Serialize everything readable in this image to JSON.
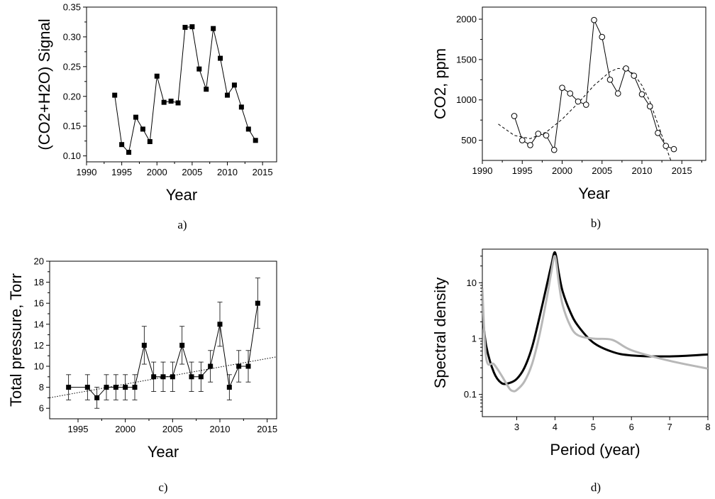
{
  "chart_data": [
    {
      "type": "line",
      "caption": "a)",
      "xlabel": "Year",
      "ylabel": "(CO2+H2O) Signal",
      "xlim": [
        1990,
        2017
      ],
      "ylim": [
        0.09,
        0.35
      ],
      "xticks": [
        1990,
        1995,
        2000,
        2005,
        2010,
        2015
      ],
      "yticks": [
        "0.10",
        "0.15",
        "0.20",
        "0.25",
        "0.30",
        "0.35"
      ],
      "grid": false,
      "series": [
        {
          "marker": "filled-square",
          "color": "#000000",
          "x": [
            1994,
            1995,
            1996,
            1997,
            1998,
            1999,
            2000,
            2001,
            2002,
            2003,
            2004,
            2005,
            2006,
            2007,
            2008,
            2009,
            2010,
            2011,
            2012,
            2013,
            2014
          ],
          "y": [
            0.202,
            0.119,
            0.106,
            0.165,
            0.145,
            0.124,
            0.234,
            0.19,
            0.192,
            0.189,
            0.316,
            0.317,
            0.246,
            0.212,
            0.314,
            0.264,
            0.202,
            0.219,
            0.182,
            0.145,
            0.126
          ]
        }
      ]
    },
    {
      "type": "line",
      "caption": "b)",
      "xlabel": "Year",
      "ylabel": "CO2, ppm",
      "xlim": [
        1990,
        2018
      ],
      "ylim": [
        250,
        2150
      ],
      "xticks": [
        1990,
        1995,
        2000,
        2005,
        2010,
        2015
      ],
      "yticks": [
        "500",
        "1000",
        "1500",
        "2000"
      ],
      "grid": false,
      "series": [
        {
          "marker": "open-circle",
          "color": "#000000",
          "x": [
            1994,
            1995,
            1996,
            1997,
            1998,
            1999,
            2000,
            2001,
            2002,
            2003,
            2004,
            2005,
            2006,
            2007,
            2008,
            2009,
            2010,
            2011,
            2012,
            2013,
            2014
          ],
          "y": [
            800,
            500,
            440,
            580,
            560,
            380,
            1150,
            1080,
            980,
            940,
            1990,
            1780,
            1250,
            1080,
            1390,
            1300,
            1070,
            920,
            590,
            430,
            390
          ]
        },
        {
          "style": "dashed-fit",
          "color": "#000000",
          "x": [
            1992,
            1994,
            1996,
            1998,
            2000,
            2002,
            2004,
            2006,
            2007,
            2008,
            2009,
            2010,
            2011,
            2012,
            2013,
            2013.8
          ],
          "y": [
            700,
            560,
            520,
            600,
            760,
            960,
            1180,
            1350,
            1390,
            1380,
            1320,
            1180,
            980,
            700,
            420,
            200
          ]
        }
      ]
    },
    {
      "type": "line",
      "caption": "c)",
      "xlabel": "Year",
      "ylabel": "Total pressure, Torr",
      "xlim": [
        1992,
        2016
      ],
      "ylim": [
        5,
        20
      ],
      "xticks": [
        1995,
        2000,
        2005,
        2010,
        2015
      ],
      "yticks": [
        "6",
        "8",
        "10",
        "12",
        "14",
        "16",
        "18",
        "20"
      ],
      "grid": false,
      "series": [
        {
          "marker": "filled-square",
          "color": "#000000",
          "x": [
            1994,
            1996,
            1997,
            1998,
            1999,
            2000,
            2001,
            2002,
            2003,
            2004,
            2005,
            2006,
            2007,
            2008,
            2009,
            2010,
            2011,
            2012,
            2013,
            2014
          ],
          "y": [
            8,
            8,
            7,
            8,
            8,
            8,
            8,
            12,
            9,
            9,
            9,
            12,
            9,
            9,
            10,
            14,
            8,
            10,
            10,
            16
          ],
          "yerr": [
            1.2,
            1.2,
            1.0,
            1.2,
            1.2,
            1.2,
            1.2,
            1.8,
            1.4,
            1.4,
            1.4,
            1.8,
            1.4,
            1.4,
            1.5,
            2.1,
            1.2,
            1.5,
            1.5,
            2.4
          ]
        },
        {
          "style": "dotted-trend",
          "color": "#000000",
          "x": [
            1992,
            2016
          ],
          "y": [
            7.0,
            10.9
          ]
        }
      ]
    },
    {
      "type": "line",
      "caption": "d)",
      "xlabel": "Period (year)",
      "ylabel": "Spectral density",
      "xlim": [
        2.1,
        8
      ],
      "ylim": [
        0.04,
        40
      ],
      "yscale": "log",
      "xticks": [
        3,
        4,
        5,
        6,
        7,
        8
      ],
      "yticks": [
        "0.1",
        "1",
        "10"
      ],
      "grid": false,
      "series": [
        {
          "color": "#000000",
          "x": [
            2.1,
            2.2,
            2.4,
            2.6,
            2.8,
            3.0,
            3.2,
            3.4,
            3.6,
            3.8,
            3.9,
            4.0,
            4.1,
            4.2,
            4.4,
            4.6,
            5.0,
            5.5,
            6.0,
            7.0,
            8.0
          ],
          "y": [
            3.0,
            0.75,
            0.25,
            0.16,
            0.16,
            0.19,
            0.3,
            0.7,
            2.5,
            10.0,
            20.0,
            35.0,
            15.0,
            7.0,
            3.0,
            1.7,
            0.85,
            0.58,
            0.5,
            0.48,
            0.52
          ]
        },
        {
          "color": "#b8b8b8",
          "x": [
            2.1,
            2.2,
            2.4,
            2.6,
            2.8,
            2.9,
            3.0,
            3.2,
            3.4,
            3.6,
            3.8,
            3.9,
            4.0,
            4.1,
            4.2,
            4.4,
            4.6,
            5.0,
            5.5,
            6.0,
            7.0,
            8.0
          ],
          "y": [
            8.0,
            0.45,
            0.35,
            0.22,
            0.13,
            0.115,
            0.12,
            0.17,
            0.35,
            1.2,
            6.0,
            15.0,
            30.0,
            10.0,
            4.0,
            1.7,
            1.15,
            1.0,
            0.95,
            0.62,
            0.4,
            0.29
          ]
        }
      ]
    }
  ]
}
